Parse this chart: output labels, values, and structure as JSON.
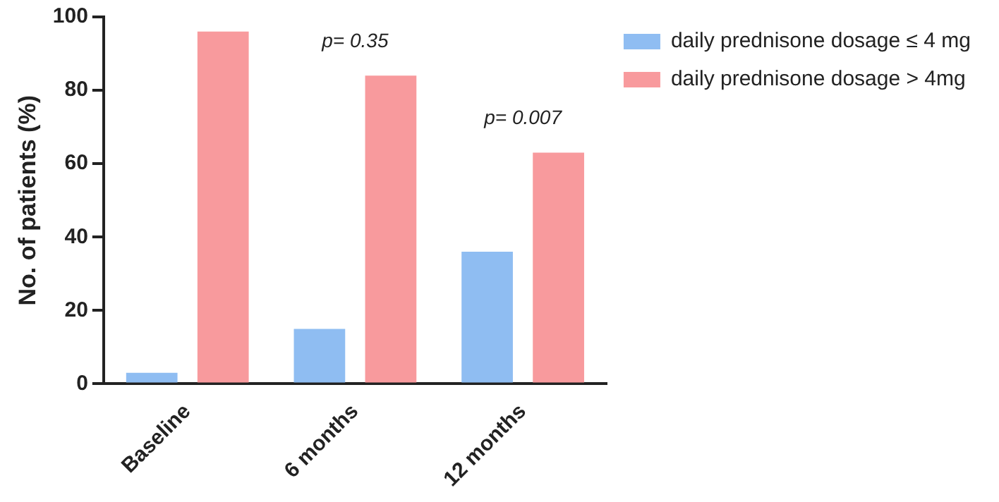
{
  "chart_data": {
    "type": "bar",
    "ylabel": "No. of patients (%)",
    "categories": [
      "Baseline",
      "6 months",
      "12 months"
    ],
    "series": [
      {
        "name": "daily prednisone dosage ≤ 4 mg",
        "color": "#8fbdf2",
        "values": [
          3,
          15,
          36
        ]
      },
      {
        "name": "daily prednisone dosage > 4mg",
        "color": "#f89a9d",
        "values": [
          96,
          84,
          63
        ]
      }
    ],
    "ylim": [
      0,
      100
    ],
    "yticks": [
      0,
      20,
      40,
      60,
      80,
      100
    ],
    "grid": false,
    "legend": "top right",
    "annotations": [
      "p= 0.35",
      "p= 0.007"
    ]
  }
}
